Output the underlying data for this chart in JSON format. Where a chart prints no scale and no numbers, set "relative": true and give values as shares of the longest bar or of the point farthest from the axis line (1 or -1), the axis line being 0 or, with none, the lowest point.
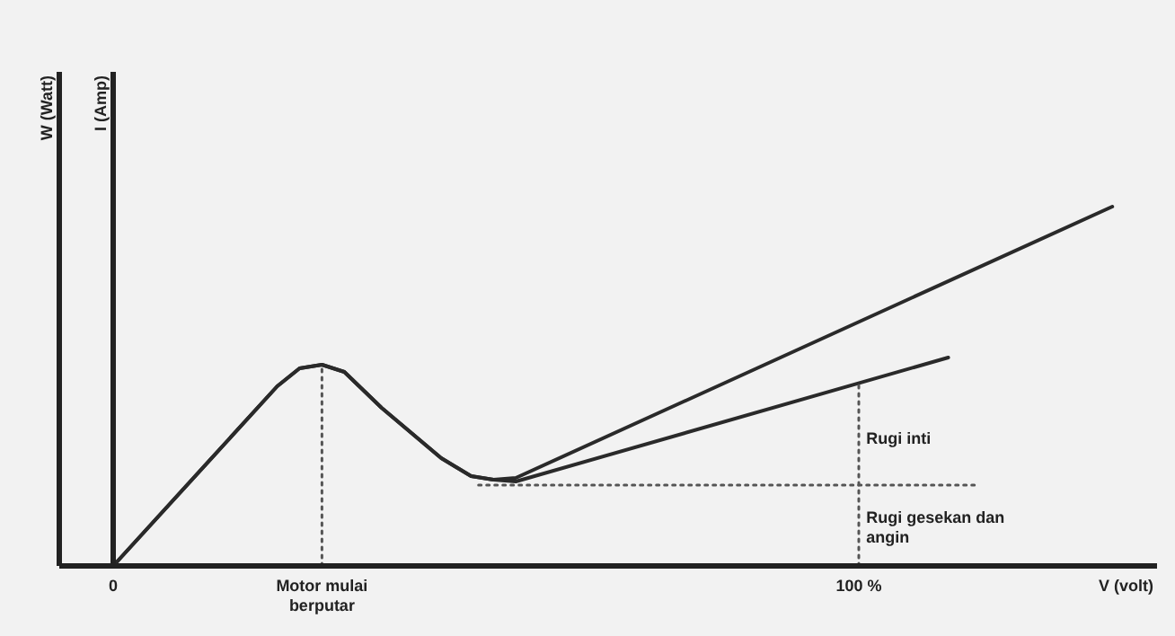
{
  "chart_data": {
    "type": "line",
    "relative": true,
    "xlabel": "V (volt)",
    "ylabel": "I (Amp)",
    "xlim": [
      0,
      140
    ],
    "xticks": [
      0,
      {
        "value": 28,
        "label": "Motor mulai berputar"
      },
      {
        "value": 100,
        "label": "100 %"
      }
    ],
    "series": [
      {
        "color": "#2a2a2a",
        "x": [
          0,
          22,
          25,
          28,
          31,
          36,
          44,
          48,
          51,
          54,
          134
        ],
        "values": [
          0,
          0.5,
          0.55,
          0.56,
          0.54,
          0.44,
          0.3,
          0.25,
          0.24,
          0.245,
          1
        ]
      },
      {
        "color": "#2a2a2a",
        "x": [
          0,
          22,
          25,
          28,
          31,
          36,
          44,
          48,
          51,
          54,
          112
        ],
        "values": [
          0,
          0.5,
          0.55,
          0.56,
          0.54,
          0.44,
          0.3,
          0.25,
          0.24,
          0.235,
          0.58
        ]
      },
      {
        "color": "#555555",
        "line_style": "dotted",
        "x": [
          49,
          116
        ],
        "values": [
          0.225,
          0.225
        ]
      },
      {
        "color": "#555555",
        "line_style": "dotted",
        "x": [
          28,
          28
        ],
        "values": [
          0,
          0.56
        ]
      },
      {
        "color": "#555555",
        "line_style": "dotted",
        "x": [
          100,
          100
        ],
        "values": [
          0,
          0.51
        ]
      }
    ],
    "annotations": [
      "W (Watt)",
      {
        "text": "Rugi inti",
        "x": 101,
        "y": 0.34
      },
      {
        "text": "Rugi gesekan dan angin",
        "x": 101,
        "y": 0.12
      }
    ]
  }
}
